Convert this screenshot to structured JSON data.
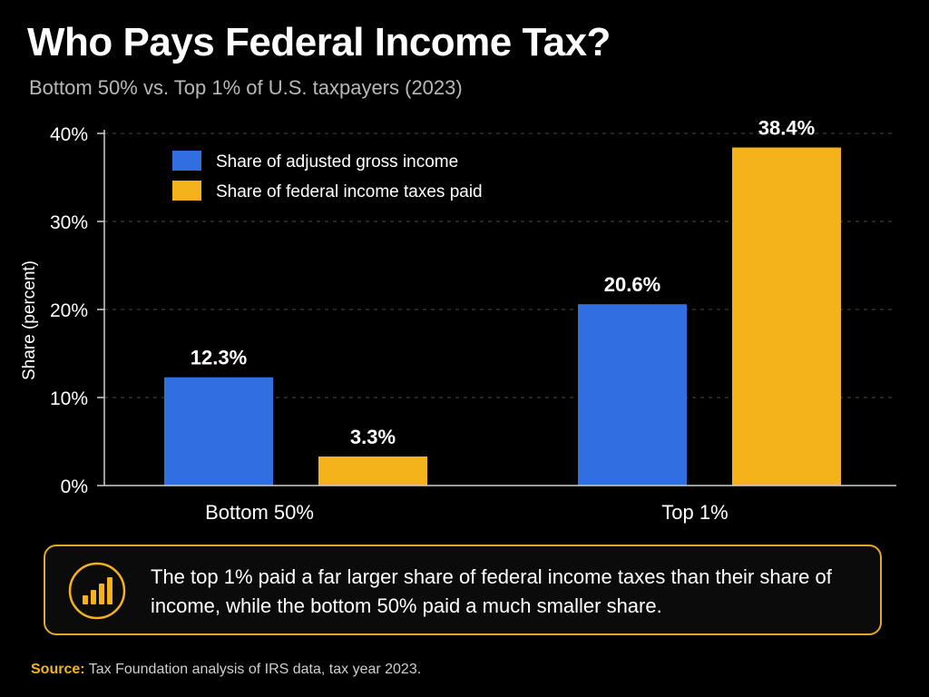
{
  "title": "Who Pays Federal Income Tax?",
  "subtitle": "Bottom 50% vs. Top 1% of U.S. taxpayers (2023)",
  "colors": {
    "income": "#2f6fe0",
    "taxes": "#f5b31b",
    "background": "#000000",
    "accent": "#f5b31b"
  },
  "chart_data": {
    "type": "bar",
    "categories": [
      "Bottom 50%",
      "Top 1%"
    ],
    "series": [
      {
        "name": "Share of adjusted gross income",
        "values": [
          12.3,
          20.6
        ]
      },
      {
        "name": "Share of federal income taxes paid",
        "values": [
          3.3,
          38.4
        ]
      }
    ],
    "data_labels": [
      [
        "12.3%",
        "20.6%"
      ],
      [
        "3.3%",
        "38.4%"
      ]
    ],
    "ylabel": "Share (percent)",
    "xlabel": "",
    "ylim": [
      0,
      40
    ],
    "yticks": [
      0,
      10,
      20,
      30,
      40
    ],
    "ytick_labels": [
      "0%",
      "10%",
      "20%",
      "30%",
      "40%"
    ],
    "grid": true,
    "legend_position": "top-left"
  },
  "callout": {
    "icon": "bar-chart-icon",
    "text": "The top 1% paid a far larger share of federal income taxes than their share of income, while the bottom 50% paid a much smaller share."
  },
  "source": {
    "label": "Source:",
    "text": "Tax Foundation analysis of IRS data, tax year 2023."
  }
}
